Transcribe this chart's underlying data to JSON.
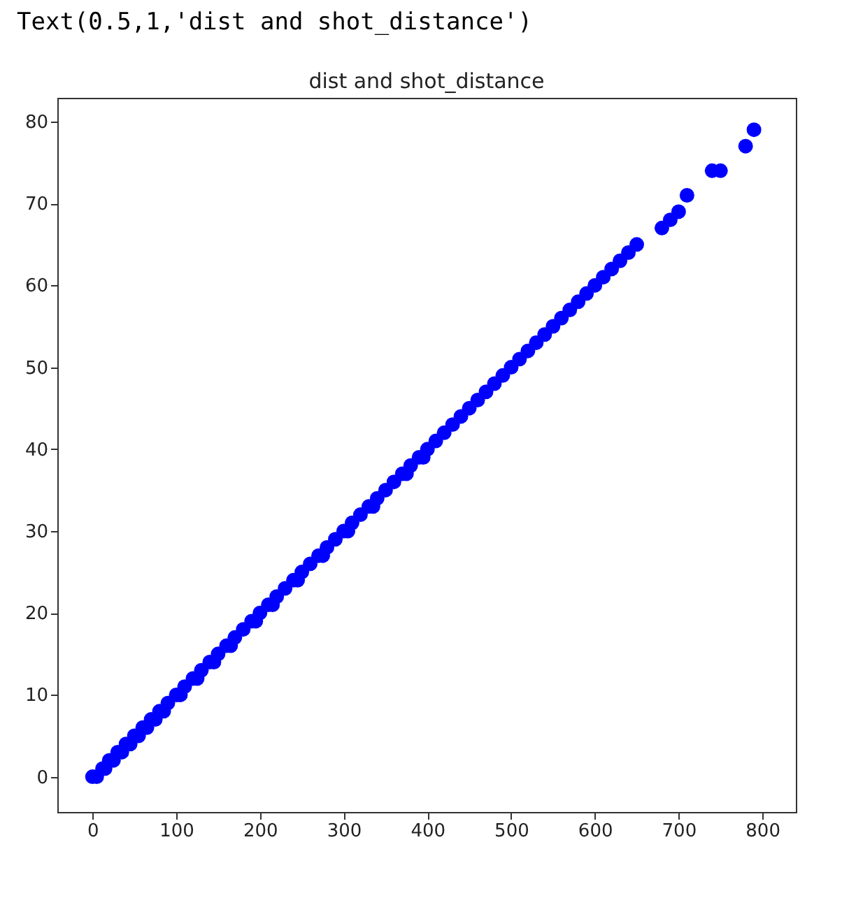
{
  "chart_data": {
    "type": "scatter",
    "title": "dist and shot_distance",
    "annotations": [
      "Text(0.5,1,'dist and shot_distance')"
    ],
    "x": [
      0,
      5,
      12,
      15,
      20,
      25,
      30,
      35,
      40,
      45,
      50,
      55,
      60,
      65,
      70,
      75,
      80,
      85,
      90,
      100,
      105,
      110,
      120,
      125,
      130,
      140,
      145,
      150,
      160,
      165,
      170,
      180,
      190,
      195,
      200,
      210,
      215,
      220,
      230,
      240,
      245,
      250,
      260,
      270,
      275,
      280,
      290,
      300,
      305,
      310,
      320,
      330,
      335,
      340,
      350,
      360,
      370,
      375,
      380,
      390,
      395,
      400,
      410,
      420,
      430,
      440,
      450,
      460,
      470,
      480,
      490,
      500,
      510,
      520,
      530,
      540,
      550,
      560,
      570,
      580,
      590,
      600,
      610,
      620,
      630,
      640,
      650,
      680,
      690,
      700,
      710,
      740,
      750,
      780,
      790
    ],
    "series": [
      {
        "color": "#0000ff",
        "values": [
          0,
          0,
          1,
          1,
          2,
          2,
          3,
          3,
          4,
          4,
          5,
          5,
          6,
          6,
          7,
          7,
          8,
          8,
          9,
          10,
          10,
          11,
          12,
          12,
          13,
          14,
          14,
          15,
          16,
          16,
          17,
          18,
          19,
          19,
          20,
          21,
          21,
          22,
          23,
          24,
          24,
          25,
          26,
          27,
          27,
          28,
          29,
          30,
          30,
          31,
          32,
          33,
          33,
          34,
          35,
          36,
          37,
          37,
          38,
          39,
          39,
          40,
          41,
          42,
          43,
          44,
          45,
          46,
          47,
          48,
          49,
          50,
          51,
          52,
          53,
          54,
          55,
          56,
          57,
          58,
          59,
          60,
          61,
          62,
          63,
          64,
          65,
          67,
          68,
          69,
          71,
          74,
          74,
          77,
          79
        ]
      }
    ],
    "xlim": [
      -42,
      840
    ],
    "ylim": [
      -4.3,
      82.9
    ],
    "xticks": [
      0,
      100,
      200,
      300,
      400,
      500,
      600,
      700,
      800
    ],
    "yticks": [
      0,
      10,
      20,
      30,
      40,
      50,
      60,
      70,
      80
    ],
    "marker": "circle",
    "grid": false
  }
}
